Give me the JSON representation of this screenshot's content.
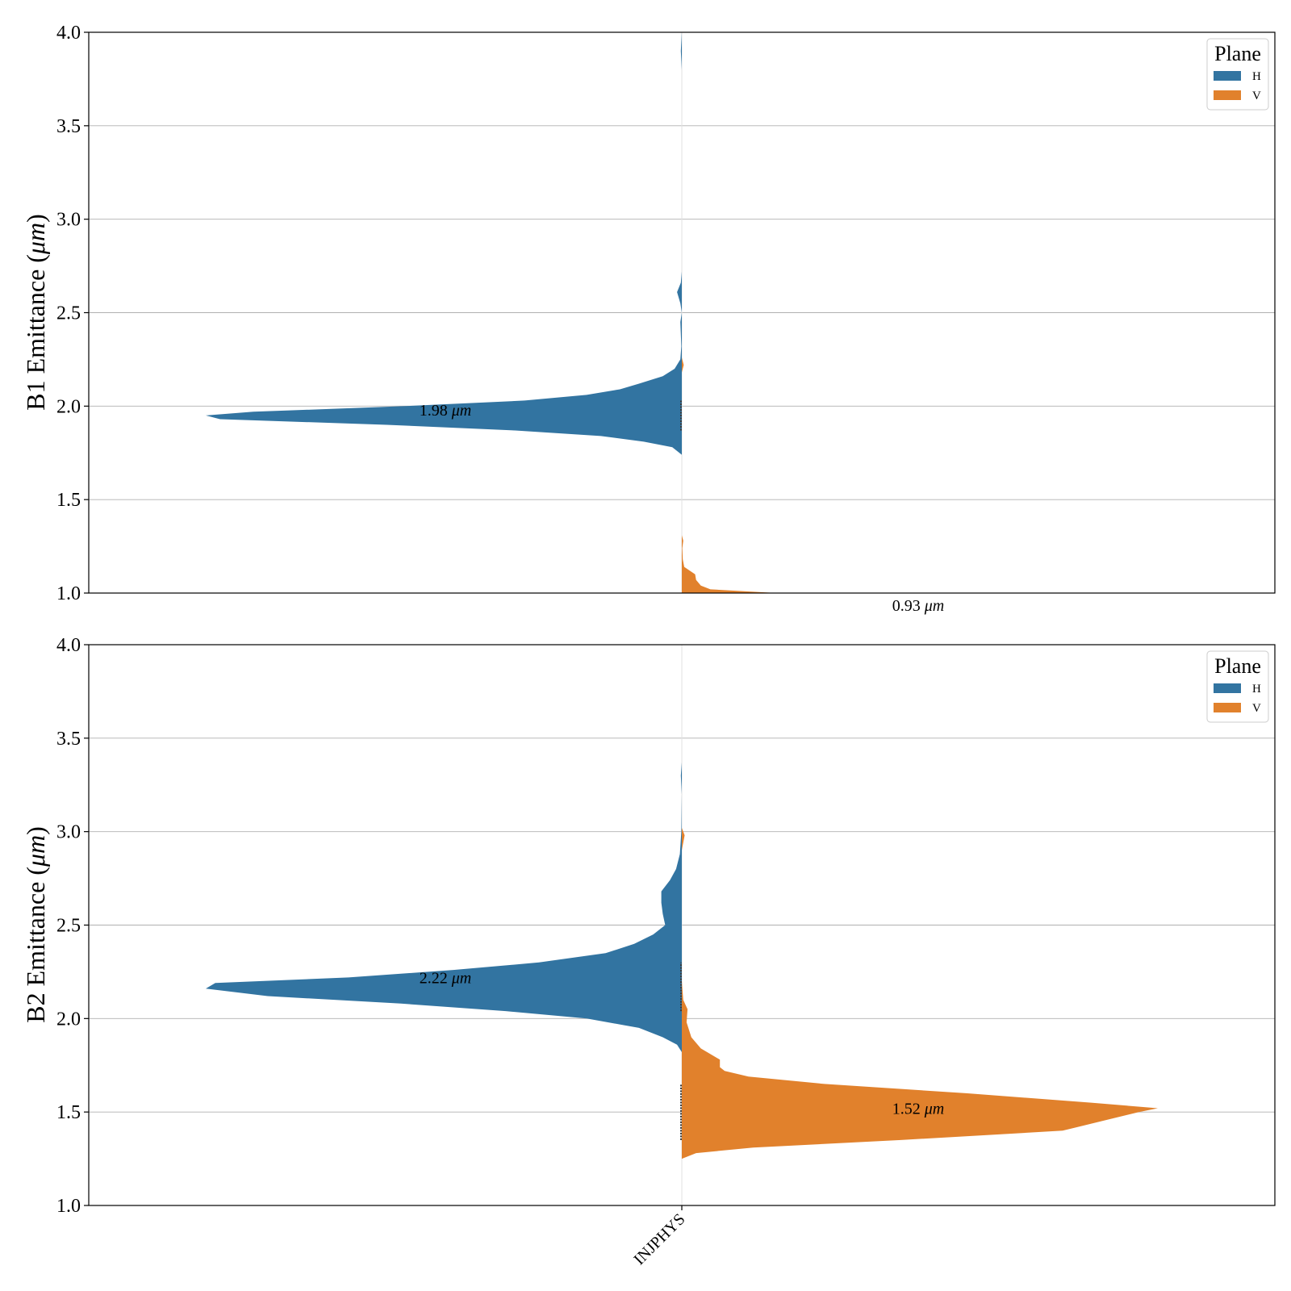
{
  "chart_data": [
    {
      "type": "violin",
      "category": "INJPHYS",
      "ylabel_prefix": "B1 Emittance (",
      "ylabel_unit": "μm",
      "ylabel_suffix": ")",
      "ylim": [
        1.0,
        4.0
      ],
      "yticks": [
        "1.0",
        "1.5",
        "2.0",
        "2.5",
        "3.0",
        "3.5",
        "4.0"
      ],
      "grid": "horizontal",
      "legend": {
        "title": "Plane",
        "placement": "top-right",
        "entries": [
          "H",
          "V"
        ]
      },
      "series": [
        {
          "name": "H",
          "color": "#3274a1",
          "side": "left",
          "median": 1.98,
          "label_value": "1.98",
          "label_unit": "μm",
          "density": [
            [
              1.74,
              0.0
            ],
            [
              1.78,
              0.02
            ],
            [
              1.81,
              0.08
            ],
            [
              1.84,
              0.17
            ],
            [
              1.87,
              0.35
            ],
            [
              1.9,
              0.62
            ],
            [
              1.93,
              0.97
            ],
            [
              1.95,
              1.0
            ],
            [
              1.97,
              0.9
            ],
            [
              2.0,
              0.58
            ],
            [
              2.03,
              0.33
            ],
            [
              2.06,
              0.2
            ],
            [
              2.09,
              0.13
            ],
            [
              2.12,
              0.09
            ],
            [
              2.16,
              0.04
            ],
            [
              2.2,
              0.015
            ],
            [
              2.25,
              0.003
            ],
            [
              2.32,
              0.001
            ],
            [
              2.45,
              0.003
            ],
            [
              2.5,
              0.0
            ],
            [
              2.55,
              0.003
            ],
            [
              2.61,
              0.01
            ],
            [
              2.66,
              0.002
            ],
            [
              2.72,
              0.0
            ],
            [
              3.8,
              0.0
            ],
            [
              3.9,
              0.002
            ],
            [
              4.0,
              0.0
            ]
          ]
        },
        {
          "name": "V",
          "color": "#e1812c",
          "side": "right",
          "median": 0.93,
          "label_value": "0.93",
          "label_unit": "μm",
          "density": [
            [
              1.0,
              0.2
            ],
            [
              1.02,
              0.06
            ],
            [
              1.04,
              0.04
            ],
            [
              1.07,
              0.03
            ],
            [
              1.1,
              0.028
            ],
            [
              1.14,
              0.005
            ],
            [
              1.18,
              0.002
            ],
            [
              1.24,
              0.001
            ],
            [
              1.28,
              0.003
            ],
            [
              1.31,
              0.0
            ],
            [
              2.18,
              0.0
            ],
            [
              2.22,
              0.004
            ],
            [
              2.26,
              0.0
            ]
          ]
        }
      ]
    },
    {
      "type": "violin",
      "category": "INJPHYS",
      "ylabel_prefix": "B2 Emittance (",
      "ylabel_unit": "μm",
      "ylabel_suffix": ")",
      "ylim": [
        1.0,
        4.0
      ],
      "yticks": [
        "1.0",
        "1.5",
        "2.0",
        "2.5",
        "3.0",
        "3.5",
        "4.0"
      ],
      "grid": "horizontal",
      "legend": {
        "title": "Plane",
        "placement": "top-right",
        "entries": [
          "H",
          "V"
        ]
      },
      "series": [
        {
          "name": "H",
          "color": "#3274a1",
          "side": "left",
          "median": 2.22,
          "label_value": "2.22",
          "label_unit": "μm",
          "density": [
            [
              1.82,
              0.0
            ],
            [
              1.86,
              0.01
            ],
            [
              1.9,
              0.04
            ],
            [
              1.95,
              0.09
            ],
            [
              2.0,
              0.2
            ],
            [
              2.04,
              0.37
            ],
            [
              2.08,
              0.59
            ],
            [
              2.12,
              0.87
            ],
            [
              2.16,
              1.0
            ],
            [
              2.19,
              0.98
            ],
            [
              2.22,
              0.7
            ],
            [
              2.26,
              0.48
            ],
            [
              2.3,
              0.3
            ],
            [
              2.35,
              0.16
            ],
            [
              2.4,
              0.1
            ],
            [
              2.45,
              0.06
            ],
            [
              2.5,
              0.035
            ],
            [
              2.56,
              0.04
            ],
            [
              2.62,
              0.043
            ],
            [
              2.68,
              0.043
            ],
            [
              2.74,
              0.025
            ],
            [
              2.8,
              0.012
            ],
            [
              2.88,
              0.004
            ],
            [
              3.0,
              0.001
            ],
            [
              3.2,
              0.0
            ],
            [
              3.3,
              0.002
            ],
            [
              3.37,
              0.0
            ]
          ]
        },
        {
          "name": "V",
          "color": "#e1812c",
          "side": "right",
          "median": 1.52,
          "label_value": "1.52",
          "label_unit": "μm",
          "density": [
            [
              1.25,
              0.0
            ],
            [
              1.28,
              0.03
            ],
            [
              1.31,
              0.15
            ],
            [
              1.35,
              0.46
            ],
            [
              1.4,
              0.8
            ],
            [
              1.45,
              0.88
            ],
            [
              1.5,
              0.96
            ],
            [
              1.52,
              1.0
            ],
            [
              1.55,
              0.86
            ],
            [
              1.6,
              0.6
            ],
            [
              1.65,
              0.3
            ],
            [
              1.69,
              0.14
            ],
            [
              1.72,
              0.09
            ],
            [
              1.74,
              0.08
            ],
            [
              1.78,
              0.08
            ],
            [
              1.84,
              0.04
            ],
            [
              1.9,
              0.02
            ],
            [
              1.98,
              0.01
            ],
            [
              2.05,
              0.012
            ],
            [
              2.1,
              0.003
            ],
            [
              2.2,
              0.0
            ],
            [
              2.9,
              0.0
            ],
            [
              2.98,
              0.006
            ],
            [
              3.02,
              0.0
            ]
          ]
        }
      ]
    }
  ]
}
